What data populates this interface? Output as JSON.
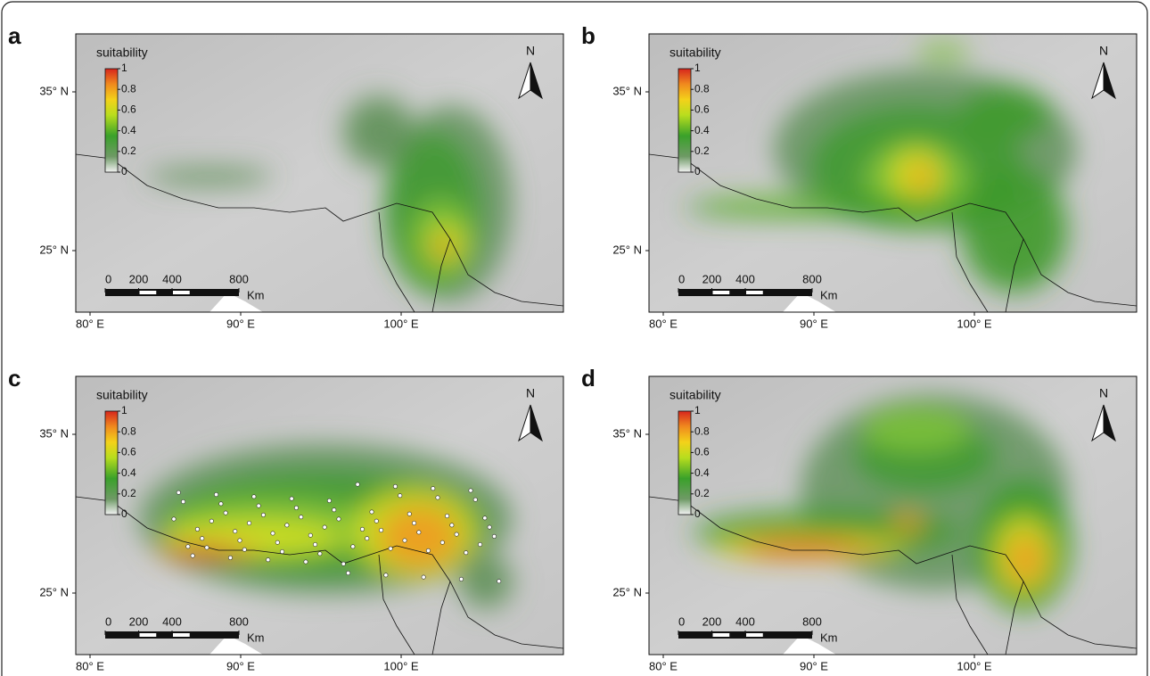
{
  "panels": [
    {
      "label": "a",
      "legend_title": "suitability",
      "legend_ticks": [
        0,
        0.2,
        0.4,
        0.6,
        0.8,
        1
      ],
      "north": "N",
      "lat_labels": [
        "35° N",
        "25° N"
      ],
      "lon_labels": [
        "80° E",
        "90° E",
        "100° E"
      ],
      "scale_ticks": [
        0,
        200,
        400,
        800
      ],
      "scale_unit": "Km"
    },
    {
      "label": "b",
      "legend_title": "suitability",
      "legend_ticks": [
        0,
        0.2,
        0.4,
        0.6,
        0.8,
        1
      ],
      "north": "N",
      "lat_labels": [
        "35° N",
        "25° N"
      ],
      "lon_labels": [
        "80° E",
        "90° E",
        "100° E"
      ],
      "scale_ticks": [
        0,
        200,
        400,
        800
      ],
      "scale_unit": "Km"
    },
    {
      "label": "c",
      "legend_title": "suitability",
      "legend_ticks": [
        0,
        0.2,
        0.4,
        0.6,
        0.8,
        1
      ],
      "north": "N",
      "lat_labels": [
        "35° N",
        "25° N"
      ],
      "lon_labels": [
        "80° E",
        "90° E",
        "100° E"
      ],
      "scale_ticks": [
        0,
        200,
        400,
        800
      ],
      "scale_unit": "Km"
    },
    {
      "label": "d",
      "legend_title": "suitability",
      "legend_ticks": [
        0,
        0.2,
        0.4,
        0.6,
        0.8,
        1
      ],
      "north": "N",
      "lat_labels": [
        "35° N",
        "25° N"
      ],
      "lon_labels": [
        "80° E",
        "90° E",
        "100° E"
      ],
      "scale_ticks": [
        0,
        200,
        400,
        800
      ],
      "scale_unit": "Km"
    }
  ]
}
